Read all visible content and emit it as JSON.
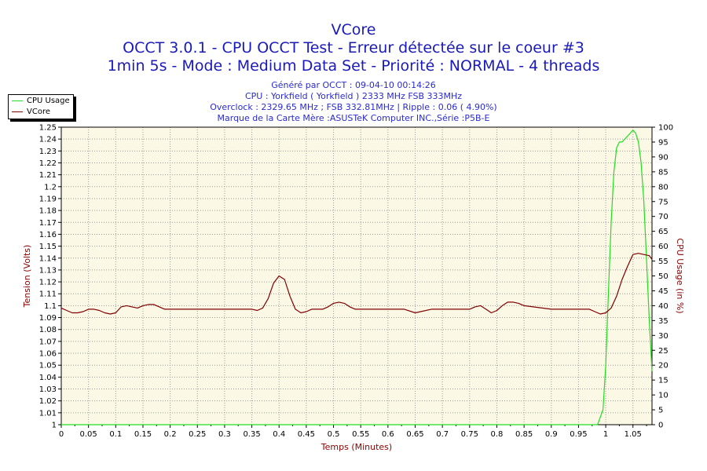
{
  "chart_data": {
    "type": "line",
    "title": "VCore",
    "subtitle1": "OCCT 3.0.1 - CPU OCCT Test - Erreur détectée sur le coeur #3",
    "subtitle2": "1min 5s - Mode : Medium Data Set - Priorité : NORMAL - 4 threads",
    "info": [
      "Généré par OCCT : 09-04-10 00:14:26",
      "CPU : Yorkfield ( Yorkfield ) 2333 MHz FSB 333MHz",
      "Overclock : 2329.65 MHz ; FSB 332.81MHz | Ripple : 0.06 ( 4.90%)",
      "Marque de la Carte Mère :ASUSTeK Computer INC.,Série :P5B-E"
    ],
    "xlabel": "Temps (Minutes)",
    "ylabel_left": "Tension (Volts)",
    "ylabel_right": "CPU Usage (in %)",
    "xlim": [
      0,
      1.085
    ],
    "ylim_left": [
      1,
      1.25
    ],
    "ylim_right": [
      0,
      100
    ],
    "x_ticks": [
      "0",
      "0.05",
      "0.1",
      "0.15",
      "0.2",
      "0.25",
      "0.3",
      "0.35",
      "0.4",
      "0.45",
      "0.5",
      "0.55",
      "0.6",
      "0.65",
      "0.7",
      "0.75",
      "0.8",
      "0.85",
      "0.9",
      "0.95",
      "1",
      "1.05"
    ],
    "y_left_ticks": [
      "1",
      "1.01",
      "1.02",
      "1.03",
      "1.04",
      "1.05",
      "1.06",
      "1.07",
      "1.08",
      "1.09",
      "1.1",
      "1.11",
      "1.12",
      "1.13",
      "1.14",
      "1.15",
      "1.16",
      "1.17",
      "1.18",
      "1.19",
      "1.2",
      "1.21",
      "1.22",
      "1.23",
      "1.24",
      "1.25"
    ],
    "y_right_ticks": [
      "0",
      "5",
      "10",
      "15",
      "20",
      "25",
      "30",
      "35",
      "40",
      "45",
      "50",
      "55",
      "60",
      "65",
      "70",
      "75",
      "80",
      "85",
      "90",
      "95",
      "100"
    ],
    "grid": true,
    "legend_position": "top-left",
    "series": [
      {
        "name": "CPU Usage",
        "axis": "right",
        "color": "#22dd22",
        "x": [
          0,
          0.97,
          0.985,
          0.995,
          1.0,
          1.005,
          1.01,
          1.015,
          1.02,
          1.025,
          1.03,
          1.035,
          1.04,
          1.045,
          1.05,
          1.055,
          1.06,
          1.065,
          1.07,
          1.075,
          1.08,
          1.085
        ],
        "values": [
          0,
          0,
          0,
          5,
          20,
          45,
          68,
          85,
          93,
          95,
          95,
          96,
          97,
          98,
          99,
          98,
          95,
          88,
          75,
          55,
          35,
          18
        ]
      },
      {
        "name": "VCore",
        "axis": "left",
        "color": "#800000",
        "x": [
          0,
          0.01,
          0.02,
          0.03,
          0.04,
          0.05,
          0.06,
          0.07,
          0.08,
          0.09,
          0.1,
          0.11,
          0.12,
          0.13,
          0.14,
          0.15,
          0.16,
          0.17,
          0.18,
          0.19,
          0.2,
          0.25,
          0.3,
          0.33,
          0.35,
          0.36,
          0.37,
          0.38,
          0.39,
          0.4,
          0.41,
          0.42,
          0.43,
          0.44,
          0.45,
          0.46,
          0.47,
          0.48,
          0.49,
          0.5,
          0.51,
          0.52,
          0.53,
          0.54,
          0.55,
          0.6,
          0.63,
          0.65,
          0.66,
          0.68,
          0.7,
          0.75,
          0.76,
          0.77,
          0.78,
          0.79,
          0.8,
          0.81,
          0.82,
          0.83,
          0.84,
          0.85,
          0.9,
          0.95,
          0.97,
          0.98,
          0.99,
          1.0,
          1.01,
          1.02,
          1.03,
          1.04,
          1.05,
          1.06,
          1.07,
          1.08,
          1.085
        ],
        "values": [
          1.098,
          1.096,
          1.094,
          1.094,
          1.095,
          1.097,
          1.097,
          1.096,
          1.094,
          1.093,
          1.094,
          1.099,
          1.1,
          1.099,
          1.098,
          1.1,
          1.101,
          1.101,
          1.099,
          1.097,
          1.097,
          1.097,
          1.097,
          1.097,
          1.097,
          1.096,
          1.098,
          1.106,
          1.119,
          1.125,
          1.122,
          1.108,
          1.097,
          1.094,
          1.095,
          1.097,
          1.097,
          1.097,
          1.099,
          1.102,
          1.103,
          1.102,
          1.099,
          1.097,
          1.097,
          1.097,
          1.097,
          1.094,
          1.095,
          1.097,
          1.097,
          1.097,
          1.099,
          1.1,
          1.097,
          1.094,
          1.096,
          1.1,
          1.103,
          1.103,
          1.102,
          1.1,
          1.097,
          1.097,
          1.097,
          1.095,
          1.093,
          1.094,
          1.098,
          1.108,
          1.122,
          1.133,
          1.143,
          1.144,
          1.143,
          1.142,
          1.139
        ]
      }
    ]
  }
}
